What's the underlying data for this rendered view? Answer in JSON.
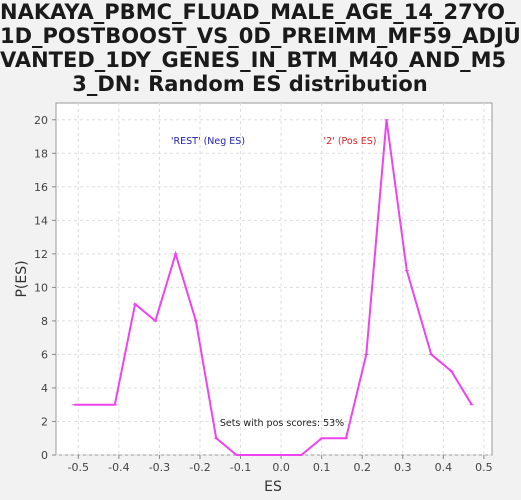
{
  "chart_data": {
    "type": "line",
    "title_lines": [
      "NAKAYA_PBMC_FLUAD_MALE_AGE_14_27YO_",
      "1D_POSTBOOST_VS_0D_PREIMM_MF59_ADJU",
      "VANTED_1DY_GENES_IN_BTM_M40_AND_M5",
      "3_DN: Random ES distribution"
    ],
    "xlabel": "ES",
    "ylabel": "P(ES)",
    "xlim": [
      -0.555,
      0.52
    ],
    "ylim": [
      0,
      21
    ],
    "x_ticks": [
      -0.5,
      -0.4,
      -0.3,
      -0.2,
      -0.1,
      0.0,
      0.1,
      0.2,
      0.3,
      0.4,
      0.5
    ],
    "x_tick_labels": [
      "-0.5",
      "-0.4",
      "-0.3",
      "-0.2",
      "-0.1",
      "0.0",
      "0.1",
      "0.2",
      "0.3",
      "0.4",
      "0.5"
    ],
    "y_ticks": [
      0,
      2,
      4,
      6,
      8,
      10,
      12,
      14,
      16,
      18,
      20
    ],
    "y_tick_labels": [
      "0",
      "2",
      "4",
      "6",
      "8",
      "10",
      "12",
      "14",
      "16",
      "18",
      "20"
    ],
    "grid": true,
    "series": [
      {
        "name": "Random ES",
        "color": "#ee44ee",
        "x": [
          -0.51,
          -0.46,
          -0.41,
          -0.36,
          -0.31,
          -0.26,
          -0.21,
          -0.16,
          -0.11,
          -0.06,
          -0.01,
          0.05,
          0.1,
          0.16,
          0.21,
          0.26,
          0.31,
          0.37,
          0.42,
          0.47
        ],
        "y": [
          3,
          3,
          3,
          9,
          8,
          12,
          8,
          1,
          0,
          0,
          0,
          0,
          1,
          1,
          6,
          20,
          11,
          6,
          5,
          3
        ]
      }
    ],
    "annotations": {
      "neg_label": "'REST' (Neg ES)",
      "neg_color": "#2222bb",
      "pos_label": "'2' (Pos ES)",
      "pos_color": "#dd2222",
      "sets_text": "Sets with pos scores: 53%"
    }
  }
}
